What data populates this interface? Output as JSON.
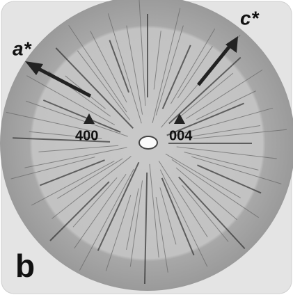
{
  "labels": {
    "a_axis": "a*",
    "c_axis": "c*",
    "reflection_left": "400",
    "reflection_right": "004",
    "panel": "b"
  }
}
